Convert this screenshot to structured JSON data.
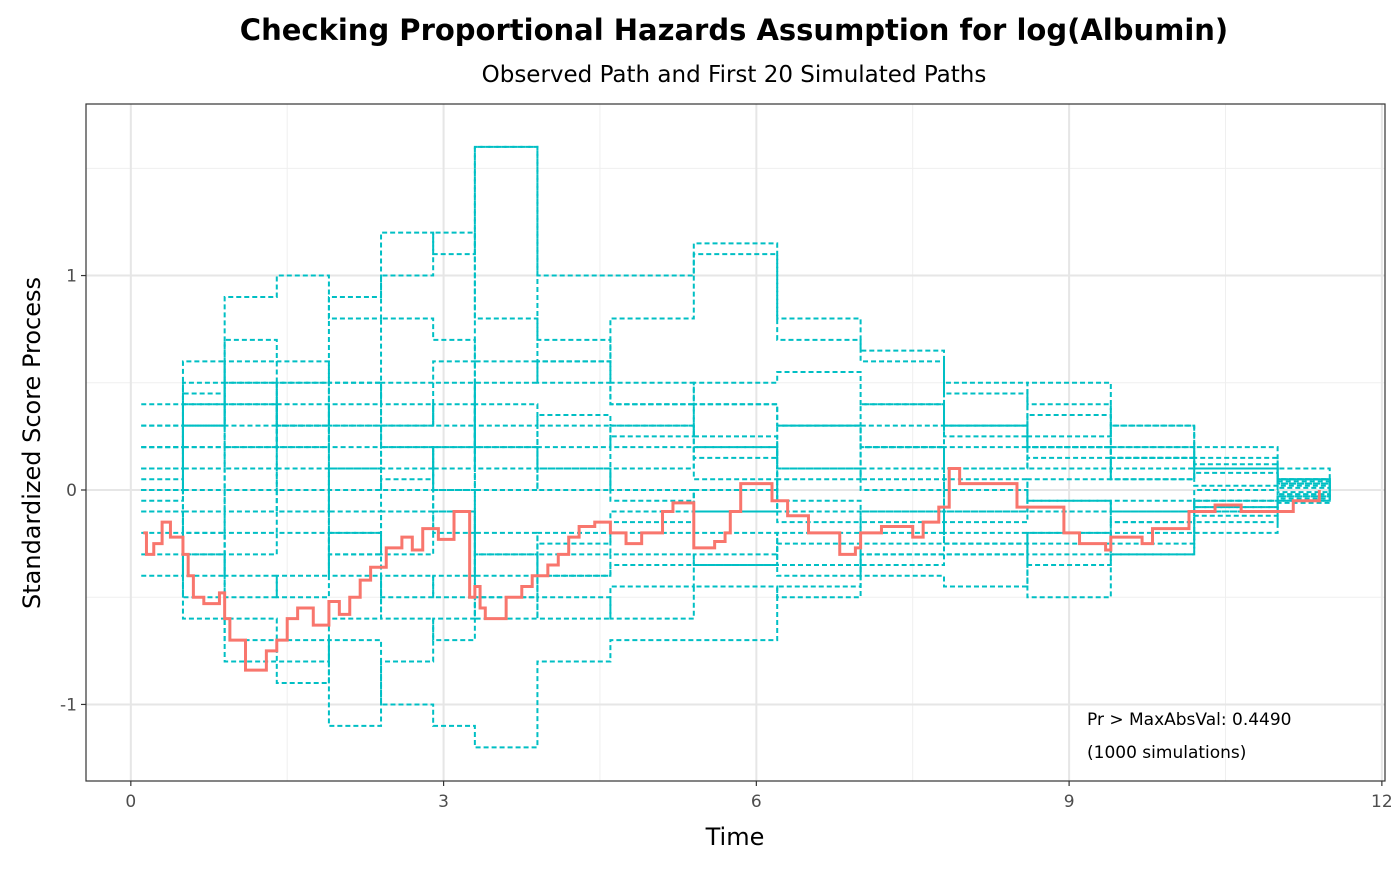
{
  "chart_data": {
    "type": "line",
    "title": "Checking Proportional Hazards Assumption for log(Albumin)",
    "subtitle": "Observed Path and First 20 Simulated Paths",
    "xlabel": "Time",
    "ylabel": "Standardized Score Process",
    "xlim": [
      -0.43,
      12.03
    ],
    "ylim": [
      -1.357,
      1.8
    ],
    "xticks": [
      0,
      3,
      6,
      9,
      12
    ],
    "xtick_labels": [
      "0",
      "3",
      "6",
      "9",
      "12"
    ],
    "yticks": [
      -1,
      0,
      1
    ],
    "ytick_labels": [
      "-1",
      "0",
      "1"
    ],
    "grid": true,
    "annotation": [
      "Pr > MaxAbsVal: 0.4490",
      "(1000 simulations)"
    ],
    "colors": {
      "observed": "#F8766D",
      "simulated": "#00BFC4"
    },
    "observed": {
      "name": "Observed",
      "x": [
        0.12,
        0.15,
        0.22,
        0.3,
        0.38,
        0.5,
        0.55,
        0.6,
        0.7,
        0.85,
        0.9,
        0.95,
        1.1,
        1.3,
        1.4,
        1.5,
        1.6,
        1.75,
        1.9,
        2.0,
        2.1,
        2.2,
        2.3,
        2.45,
        2.6,
        2.7,
        2.8,
        2.95,
        3.1,
        3.25,
        3.3,
        3.35,
        3.4,
        3.6,
        3.75,
        3.85,
        4.0,
        4.1,
        4.2,
        4.3,
        4.45,
        4.6,
        4.75,
        4.9,
        5.1,
        5.2,
        5.4,
        5.6,
        5.7,
        5.75,
        5.85,
        6.15,
        6.3,
        6.5,
        6.8,
        6.95,
        7.0,
        7.2,
        7.5,
        7.6,
        7.75,
        7.85,
        7.95,
        8.5,
        8.95,
        9.1,
        9.35,
        9.4,
        9.7,
        9.8,
        10.15,
        10.4,
        10.65,
        11.15,
        11.4
      ],
      "y": [
        -0.2,
        -0.3,
        -0.25,
        -0.15,
        -0.22,
        -0.3,
        -0.4,
        -0.5,
        -0.53,
        -0.48,
        -0.6,
        -0.7,
        -0.84,
        -0.75,
        -0.7,
        -0.6,
        -0.55,
        -0.63,
        -0.52,
        -0.58,
        -0.5,
        -0.42,
        -0.36,
        -0.27,
        -0.22,
        -0.28,
        -0.18,
        -0.23,
        -0.1,
        -0.5,
        -0.45,
        -0.55,
        -0.6,
        -0.5,
        -0.45,
        -0.4,
        -0.35,
        -0.3,
        -0.22,
        -0.17,
        -0.15,
        -0.2,
        -0.25,
        -0.2,
        -0.1,
        -0.06,
        -0.27,
        -0.24,
        -0.2,
        -0.1,
        0.03,
        -0.05,
        -0.12,
        -0.2,
        -0.3,
        -0.27,
        -0.2,
        -0.17,
        -0.22,
        -0.15,
        -0.08,
        0.1,
        0.03,
        -0.08,
        -0.2,
        -0.25,
        -0.28,
        -0.22,
        -0.25,
        -0.18,
        -0.1,
        -0.07,
        -0.1,
        -0.05,
        0
      ]
    },
    "simulated_x": [
      0.1,
      0.5,
      0.9,
      1.4,
      1.9,
      2.4,
      2.9,
      3.3,
      3.9,
      4.6,
      5.4,
      6.2,
      7.0,
      7.8,
      8.6,
      9.4,
      10.2,
      11.0,
      11.5
    ],
    "simulated": [
      [
        0,
        0.3,
        0.9,
        1.0,
        0.8,
        1.2,
        1.1,
        1.6,
        0.6,
        0.5,
        0.4,
        0.3,
        0.2,
        0.1,
        0.15,
        0.05,
        0.1,
        0.05,
        0
      ],
      [
        0.2,
        0.5,
        0.4,
        0.3,
        0.2,
        0.5,
        0.6,
        1.6,
        1.0,
        1.0,
        1.1,
        0.7,
        0.6,
        0.3,
        0.2,
        0.15,
        0.1,
        0.05,
        0
      ],
      [
        -0.1,
        -0.5,
        -0.8,
        -0.9,
        -0.7,
        -1.0,
        -1.1,
        -1.2,
        -0.8,
        -0.7,
        -0.7,
        -0.45,
        -0.3,
        -0.3,
        -0.5,
        -0.3,
        -0.15,
        -0.05,
        0
      ],
      [
        0.1,
        0.4,
        0.2,
        0.5,
        0.9,
        1.0,
        1.2,
        0.8,
        0.7,
        0.4,
        0.2,
        0.1,
        0.3,
        0.5,
        0.2,
        0.1,
        0.12,
        0.05,
        0.02
      ],
      [
        0,
        -0.2,
        -0.6,
        -0.7,
        -1.1,
        -0.8,
        -0.6,
        -0.5,
        -0.4,
        -0.3,
        -0.35,
        -0.4,
        -0.3,
        -0.3,
        -0.25,
        -0.15,
        -0.1,
        -0.03,
        -0.02
      ],
      [
        0.3,
        0.4,
        0.6,
        0.5,
        0.3,
        0.2,
        0.1,
        0.5,
        0.6,
        0.8,
        1.15,
        0.8,
        0.65,
        0.45,
        0.4,
        0.3,
        0.2,
        0.1,
        0.03
      ],
      [
        -0.2,
        -0.4,
        -0.3,
        -0.2,
        -0.4,
        -0.6,
        -0.7,
        -0.5,
        -0.6,
        -0.45,
        -0.35,
        -0.25,
        -0.4,
        -0.45,
        -0.2,
        -0.25,
        -0.1,
        -0.05,
        0
      ],
      [
        0.1,
        0.0,
        -0.2,
        -0.1,
        0.1,
        0.0,
        0.2,
        0.3,
        0.1,
        0.25,
        0.4,
        0.3,
        0.2,
        0.1,
        0.35,
        0.2,
        0.1,
        0.03,
        0.01
      ],
      [
        -0.3,
        -0.6,
        -0.5,
        -0.4,
        -0.2,
        -0.3,
        -0.1,
        -0.6,
        -0.3,
        -0.2,
        -0.1,
        -0.15,
        -0.2,
        -0.1,
        -0.1,
        -0.05,
        -0.08,
        -0.02,
        0
      ],
      [
        0.4,
        0.6,
        0.5,
        0.3,
        0.4,
        0.8,
        0.7,
        0.2,
        0.0,
        0.1,
        0.2,
        0.05,
        0.1,
        0.0,
        -0.05,
        -0.1,
        0.0,
        0.02,
        0
      ],
      [
        0,
        -0.1,
        0.2,
        0.4,
        0.3,
        0.1,
        -0.1,
        -0.3,
        -0.2,
        -0.1,
        0.0,
        -0.1,
        -0.15,
        -0.25,
        -0.35,
        -0.2,
        -0.12,
        -0.04,
        0
      ],
      [
        0.05,
        0.3,
        0.7,
        0.6,
        0.5,
        0.3,
        0.4,
        0.1,
        0.2,
        0.3,
        0.15,
        0.3,
        0.4,
        0.25,
        0.1,
        0.05,
        0.08,
        0.03,
        0.01
      ],
      [
        -0.1,
        -0.3,
        -0.7,
        -0.8,
        -0.6,
        -0.4,
        -0.5,
        -0.3,
        -0.5,
        -0.6,
        -0.45,
        -0.5,
        -0.35,
        -0.25,
        -0.2,
        -0.3,
        -0.2,
        -0.06,
        -0.01
      ],
      [
        0.2,
        0.1,
        0.0,
        0.2,
        0.5,
        0.4,
        0.3,
        0.0,
        0.1,
        0.0,
        -0.1,
        0.1,
        0.05,
        0.2,
        0.25,
        0.3,
        0.15,
        0.05,
        0.01
      ],
      [
        -0.05,
        0.2,
        0.1,
        -0.1,
        -0.2,
        -0.1,
        0.0,
        0.4,
        0.3,
        0.2,
        0.05,
        -0.05,
        -0.1,
        0.05,
        -0.1,
        -0.15,
        -0.05,
        -0.02,
        0
      ],
      [
        0.3,
        0.2,
        0.4,
        0.2,
        0.0,
        0.3,
        0.5,
        0.2,
        0.35,
        0.3,
        0.25,
        0.1,
        0.0,
        -0.1,
        0.05,
        0.15,
        0.02,
        0.01,
        0
      ],
      [
        -0.4,
        -0.3,
        -0.1,
        0.0,
        -0.3,
        -0.5,
        -0.4,
        -0.2,
        -0.4,
        -0.35,
        -0.3,
        -0.2,
        -0.1,
        -0.15,
        -0.05,
        -0.1,
        -0.05,
        -0.01,
        0
      ],
      [
        0.1,
        0.3,
        0.5,
        0.3,
        0.1,
        0.2,
        0.0,
        -0.4,
        -0.25,
        -0.15,
        0.0,
        0.1,
        0.2,
        0.3,
        0.2,
        0.15,
        0.1,
        0.04,
        0.01
      ],
      [
        0,
        -0.2,
        -0.4,
        -0.5,
        -0.3,
        -0.1,
        -0.2,
        0.0,
        0.1,
        -0.05,
        -0.2,
        -0.35,
        -0.25,
        -0.2,
        -0.3,
        -0.1,
        -0.08,
        -0.03,
        0
      ],
      [
        0.2,
        0.45,
        0.3,
        0.1,
        -0.1,
        0.05,
        0.2,
        0.6,
        0.5,
        0.4,
        0.5,
        0.55,
        0.4,
        0.3,
        0.5,
        0.2,
        0.1,
        0.03,
        0
      ]
    ]
  }
}
